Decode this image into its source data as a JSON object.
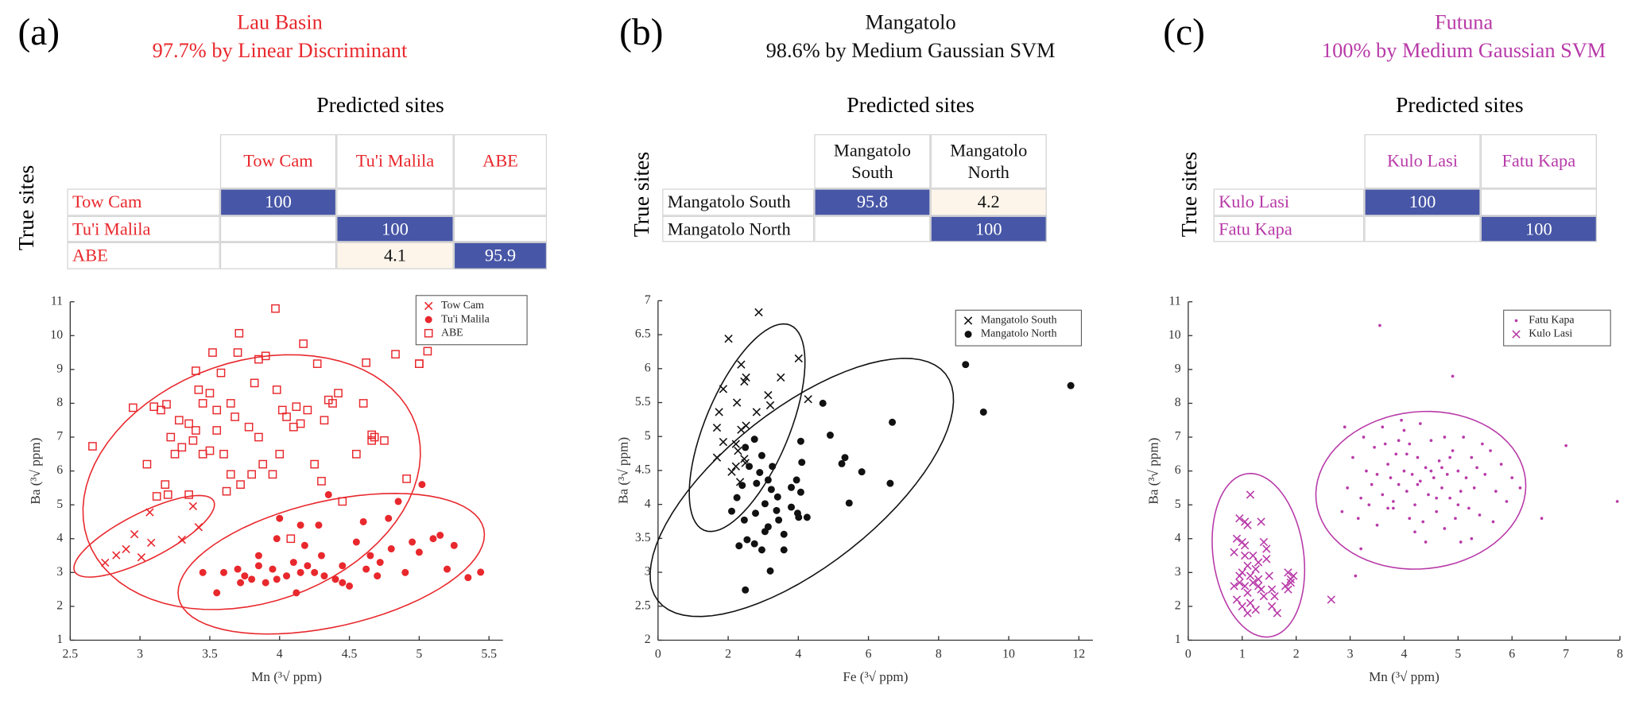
{
  "chart_data": [
    {
      "type": "scatter",
      "panel_label": "(a)",
      "title": "Lau Basin",
      "subtitle": "97.7% by Linear Discriminant",
      "text_color": "#e8282d",
      "table": {
        "title": "Predicted sites",
        "row_title": "True sites",
        "columns": [
          "Tow Cam",
          "Tu'i Malila",
          "ABE"
        ],
        "rows": [
          {
            "label": "Tow Cam",
            "values": [
              100,
              null,
              null
            ]
          },
          {
            "label": "Tu'i Malila",
            "values": [
              null,
              100,
              null
            ]
          },
          {
            "label": "ABE",
            "values": [
              null,
              4.1,
              95.9
            ]
          }
        ]
      },
      "x_label": "Mn (³√ ppm)",
      "y_label": "Ba (³√ ppm)",
      "xlim": [
        2.5,
        5.6
      ],
      "ylim": [
        1,
        11
      ],
      "xticks": [
        2.5,
        3,
        3.5,
        4,
        4.5,
        5,
        5.5
      ],
      "yticks": [
        1,
        2,
        3,
        4,
        5,
        6,
        7,
        8,
        9,
        10,
        11
      ],
      "series": [
        {
          "name": "Tow Cam",
          "color": "#e8282d",
          "marker": "x",
          "x": [
            2.75,
            2.83,
            2.9,
            2.96,
            3.01,
            3.07,
            3.08,
            3.3,
            3.42,
            3.38
          ],
          "y": [
            3.29,
            3.51,
            3.69,
            4.13,
            3.45,
            4.78,
            3.88,
            3.97,
            4.34,
            4.96
          ],
          "ellipse": {
            "center": [
              3.03,
              4.07
            ],
            "axis1": [
              0.498,
              1.04
            ],
            "axis2": [
              0.074,
              -0.61
            ]
          }
        },
        {
          "name": "Tu'i Malila",
          "color": "#e8282d",
          "marker": "dot",
          "x": [
            3.45,
            3.55,
            3.6,
            3.7,
            3.72,
            3.75,
            3.8,
            3.85,
            3.9,
            3.95,
            3.98,
            4.0,
            4.05,
            4.1,
            4.12,
            4.15,
            4.18,
            4.2,
            4.25,
            4.28,
            4.3,
            4.32,
            4.35,
            4.4,
            4.45,
            4.5,
            4.55,
            4.6,
            4.62,
            4.65,
            4.7,
            4.72,
            4.78,
            4.8,
            4.85,
            4.9,
            4.95,
            5.0,
            5.02,
            5.1,
            5.15,
            5.2,
            5.25,
            5.35,
            5.44,
            3.98,
            4.15,
            4.45,
            3.85
          ],
          "y": [
            3.0,
            2.4,
            3.0,
            3.1,
            2.7,
            2.9,
            2.8,
            3.2,
            2.7,
            3.1,
            2.8,
            4.6,
            2.9,
            3.3,
            2.4,
            3.0,
            3.8,
            3.2,
            3.0,
            4.4,
            3.5,
            2.9,
            5.3,
            2.8,
            3.2,
            2.6,
            3.9,
            4.5,
            3.1,
            3.5,
            2.9,
            3.3,
            4.6,
            3.7,
            5.1,
            3.0,
            3.9,
            3.6,
            5.6,
            4.0,
            4.1,
            3.1,
            3.8,
            2.85,
            3.01,
            4.0,
            4.4,
            2.7,
            3.5
          ],
          "ellipse": {
            "center": [
              4.37,
              3.26
            ],
            "axis1": [
              1.093,
              1.02
            ],
            "axis2": [
              0.097,
              -1.81
            ]
          }
        },
        {
          "name": "ABE",
          "color": "#e8282d",
          "marker": "square",
          "x": [
            2.66,
            2.95,
            3.05,
            3.1,
            3.12,
            3.15,
            3.18,
            3.2,
            3.22,
            3.25,
            3.28,
            3.3,
            3.4,
            3.35,
            3.38,
            3.4,
            3.42,
            3.45,
            3.45,
            3.5,
            3.5,
            3.52,
            3.55,
            3.58,
            3.6,
            3.62,
            3.65,
            3.65,
            3.68,
            3.7,
            3.72,
            3.71,
            3.78,
            3.8,
            3.82,
            3.85,
            3.85,
            3.88,
            3.9,
            3.95,
            3.98,
            4.0,
            4.02,
            4.05,
            4.08,
            4.1,
            4.12,
            4.15,
            4.2,
            4.25,
            4.3,
            4.32,
            4.35,
            4.38,
            4.17,
            4.27,
            4.42,
            4.45,
            4.55,
            4.6,
            4.62,
            4.66,
            4.68,
            4.75,
            5.0,
            4.66,
            5.0,
            5.06,
            4.91,
            3.97,
            3.55,
            3.35,
            4.83,
            3.19
          ],
          "y": [
            6.73,
            7.87,
            6.2,
            7.9,
            5.25,
            7.8,
            5.6,
            5.3,
            7.0,
            6.5,
            7.5,
            6.7,
            8.96,
            5.3,
            6.9,
            7.2,
            8.4,
            6.5,
            8.0,
            8.3,
            6.6,
            9.5,
            7.8,
            8.9,
            6.5,
            5.4,
            5.9,
            8.0,
            7.6,
            9.5,
            5.6,
            10.07,
            7.3,
            5.9,
            8.6,
            9.3,
            7.0,
            6.2,
            9.4,
            5.9,
            8.4,
            6.5,
            7.8,
            7.6,
            4.0,
            7.3,
            7.9,
            7.4,
            7.8,
            6.2,
            5.7,
            7.5,
            8.1,
            8.0,
            9.76,
            9.17,
            8.3,
            5.1,
            6.5,
            8.0,
            9.2,
            7.07,
            7.0,
            6.9,
            9.17,
            6.9,
            9.17,
            9.54,
            5.77,
            10.8,
            7.2,
            7.4,
            9.45,
            7.97
          ],
          "ellipse": {
            "center": [
              3.8,
              5.67
            ],
            "axis1": [
              1.175,
              1.7
            ],
            "axis2": [
              0.284,
              -3.36
            ]
          }
        }
      ]
    },
    {
      "type": "scatter",
      "panel_label": "(b)",
      "title": "Mangatolo",
      "subtitle": "98.6% by Medium Gaussian SVM",
      "text_color": "#111111",
      "table": {
        "title": "Predicted sites",
        "row_title": "True sites",
        "columns": [
          "Mangatolo South",
          "Mangatolo North"
        ],
        "rows": [
          {
            "label": "Mangatolo South",
            "values": [
              95.8,
              4.2
            ]
          },
          {
            "label": "Mangatolo North",
            "values": [
              null,
              100
            ]
          }
        ]
      },
      "x_label": "Fe (³√ ppm)",
      "y_label": "Ba (³√ ppm)",
      "xlim": [
        0,
        12.4
      ],
      "ylim": [
        2,
        7
      ],
      "xticks": [
        0,
        2,
        4,
        6,
        8,
        10,
        12
      ],
      "yticks": [
        2,
        2.5,
        3,
        3.5,
        4,
        4.5,
        5,
        5.5,
        6,
        6.5,
        7
      ],
      "series": [
        {
          "name": "Mangatolo South",
          "color": "#111111",
          "marker": "x",
          "x": [
            2.87,
            2.01,
            4.01,
            2.37,
            1.86,
            3.5,
            2.46,
            3.2,
            2.51,
            2.25,
            1.74,
            2.81,
            1.68,
            2.51,
            1.86,
            2.37,
            2.22,
            2.28,
            1.68,
            2.46,
            2.22,
            2.1,
            2.34,
            2.49,
            4.28,
            3.14
          ],
          "y": [
            6.83,
            6.44,
            6.15,
            6.06,
            5.7,
            5.87,
            5.81,
            5.46,
            5.87,
            5.5,
            5.36,
            5.36,
            5.13,
            5.16,
            4.92,
            5.1,
            4.89,
            4.79,
            4.69,
            4.67,
            4.56,
            4.48,
            4.33,
            4.61,
            5.55,
            5.61
          ],
          "ellipse": {
            "center": [
              2.54,
              5.13
            ],
            "axis1": [
              1.23,
              1.51
            ],
            "axis2": [
              1.1,
              -0.24
            ]
          }
        },
        {
          "name": "Mangatolo North",
          "color": "#111111",
          "marker": "dot",
          "x": [
            8.77,
            11.77,
            9.28,
            6.68,
            4.7,
            4.91,
            5.33,
            5.81,
            6.62,
            5.24,
            5.45,
            4.07,
            4.1,
            3.95,
            3.8,
            4.07,
            3.98,
            4.01,
            4.25,
            3.41,
            3.23,
            3.38,
            3.44,
            3.59,
            3.59,
            3.05,
            3.26,
            2.96,
            2.9,
            3.14,
            2.81,
            2.49,
            2.75,
            2.6,
            2.4,
            2.25,
            2.1,
            2.46,
            2.54,
            2.75,
            2.31,
            2.96,
            3.14,
            2.78,
            3.2,
            2.49,
            3.05,
            3.8
          ],
          "y": [
            6.06,
            5.75,
            5.36,
            5.21,
            5.49,
            5.02,
            4.69,
            4.48,
            4.31,
            4.6,
            4.02,
            4.93,
            4.62,
            4.36,
            4.25,
            4.18,
            3.87,
            3.81,
            3.81,
            4.11,
            4.22,
            3.91,
            3.77,
            3.56,
            3.33,
            3.6,
            4.56,
            4.72,
            4.47,
            4.36,
            4.31,
            4.84,
            4.96,
            4.56,
            4.28,
            4.1,
            3.9,
            3.77,
            3.48,
            3.42,
            3.39,
            3.33,
            3.67,
            3.87,
            3.02,
            2.74,
            4.01,
            3.96
          ],
          "ellipse": {
            "center": [
              4.1,
              4.25
            ],
            "axis1": [
              4.1,
              1.67
            ],
            "axis2": [
              1.38,
              -0.91
            ]
          }
        }
      ]
    },
    {
      "type": "scatter",
      "panel_label": "(c)",
      "title": "Futuna",
      "subtitle": "100% by Medium Gaussian SVM",
      "text_color": "#b83aa8",
      "table": {
        "title": "Predicted sites",
        "row_title": "True sites",
        "columns": [
          "Kulo Lasi",
          "Fatu Kapa"
        ],
        "rows": [
          {
            "label": "Kulo Lasi",
            "values": [
              100,
              null
            ]
          },
          {
            "label": "Fatu Kapa",
            "values": [
              null,
              100
            ]
          }
        ]
      },
      "x_label": "Mn (³√ ppm)",
      "y_label": "Ba (³√ ppm)",
      "xlim": [
        0,
        8
      ],
      "ylim": [
        1,
        11
      ],
      "xticks": [
        0,
        1,
        2,
        3,
        4,
        5,
        6,
        7,
        8
      ],
      "yticks": [
        1,
        2,
        3,
        4,
        5,
        6,
        7,
        8,
        9,
        10,
        11
      ],
      "series": [
        {
          "name": "Fatu Kapa",
          "color": "#b83aa8",
          "marker": "point",
          "x": [
            3.55,
            4.9,
            7.0,
            7.95,
            6.55,
            6.15,
            3.1,
            2.85,
            3.2,
            2.95,
            3.3,
            3.4,
            3.5,
            3.6,
            3.7,
            3.75,
            3.8,
            3.85,
            3.9,
            3.95,
            4.0,
            4.05,
            4.1,
            4.15,
            4.2,
            4.25,
            4.3,
            4.35,
            4.4,
            4.45,
            4.5,
            4.55,
            4.6,
            4.65,
            4.7,
            4.75,
            4.8,
            4.85,
            4.9,
            4.95,
            5.0,
            5.05,
            5.1,
            5.15,
            5.2,
            5.25,
            5.3,
            5.35,
            5.4,
            5.5,
            5.6,
            5.7,
            5.8,
            5.9,
            6.0,
            3.25,
            3.45,
            3.6,
            3.7,
            3.35,
            3.5,
            3.65,
            4.0,
            4.2,
            4.4,
            4.3,
            4.75,
            5.05,
            5.25,
            5.45,
            3.9,
            4.1,
            4.6,
            4.85,
            3.2,
            3.8,
            4.5,
            5.65,
            2.9,
            3.05,
            3.15,
            4.05,
            4.25,
            4.7,
            5.0
          ],
          "y": [
            10.3,
            8.8,
            6.75,
            5.1,
            4.6,
            5.5,
            2.9,
            4.8,
            5.2,
            5.5,
            6.0,
            5.6,
            5.9,
            5.3,
            6.2,
            5.8,
            4.9,
            6.5,
            5.6,
            7.5,
            6.0,
            5.4,
            6.8,
            5.9,
            5.0,
            6.4,
            5.7,
            4.5,
            6.1,
            5.3,
            6.9,
            5.8,
            4.8,
            6.3,
            5.5,
            7.0,
            5.9,
            5.2,
            6.6,
            4.6,
            6.0,
            5.4,
            7.0,
            5.8,
            4.9,
            6.4,
            5.5,
            6.1,
            4.7,
            5.9,
            6.6,
            5.4,
            6.2,
            5.1,
            5.8,
            7.0,
            6.7,
            7.3,
            4.9,
            5.0,
            4.4,
            6.8,
            7.2,
            4.2,
            3.9,
            7.4,
            4.3,
            3.9,
            4.0,
            6.8,
            6.9,
            4.6,
            5.2,
            6.4,
            3.7,
            5.1,
            6.0,
            4.5,
            7.3,
            6.4,
            4.6,
            6.5,
            5.6,
            6.1,
            5.0
          ],
          "ellipse": {
            "center": [
              4.31,
              5.43
            ],
            "axis1": [
              1.94,
              0.31
            ],
            "axis2": [
              0.146,
              -2.31
            ]
          }
        },
        {
          "name": "Kulo Lasi",
          "color": "#b83aa8",
          "marker": "x",
          "x": [
            1.15,
            0.95,
            1.05,
            1.1,
            1.35,
            1.45,
            0.9,
            1.0,
            1.05,
            0.85,
            1.2,
            1.3,
            1.45,
            1.1,
            1.25,
            1.0,
            1.15,
            1.3,
            1.5,
            1.85,
            1.9,
            1.8,
            1.95,
            1.85,
            0.85,
            0.95,
            1.05,
            1.2,
            1.35,
            1.4,
            1.1,
            0.9,
            1.0,
            1.15,
            1.25,
            1.6,
            1.55,
            1.65,
            1.55,
            1.1,
            2.65,
            1.9,
            1.3,
            1.05,
            1.4,
            0.95
          ],
          "y": [
            5.3,
            4.6,
            4.5,
            4.4,
            4.5,
            3.7,
            4.0,
            3.9,
            3.8,
            3.6,
            3.5,
            3.3,
            3.4,
            3.2,
            3.1,
            3.0,
            2.9,
            2.8,
            2.9,
            3.0,
            2.8,
            2.6,
            2.9,
            2.5,
            2.6,
            2.7,
            2.6,
            2.7,
            2.5,
            2.3,
            2.4,
            2.2,
            2.0,
            2.1,
            1.9,
            2.3,
            2.0,
            1.8,
            2.5,
            1.8,
            2.2,
            2.7,
            2.6,
            3.5,
            3.9,
            2.9
          ],
          "ellipse": {
            "center": [
              1.3,
              3.51
            ],
            "axis1": [
              -0.214,
              2.41
            ],
            "axis2": [
              0.83,
              0.186
            ]
          }
        }
      ]
    }
  ]
}
